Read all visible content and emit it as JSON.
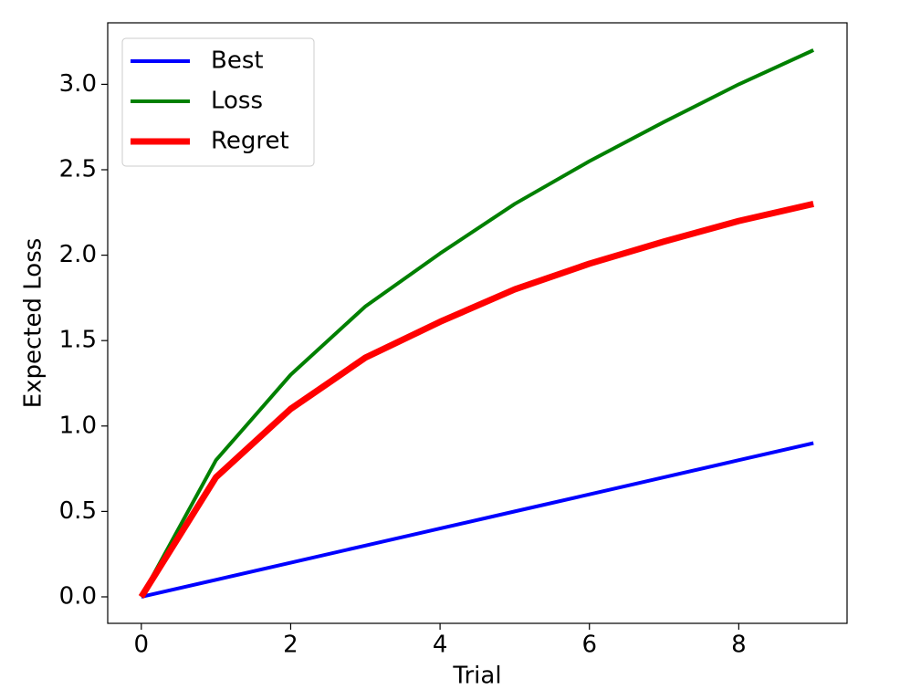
{
  "chart_data": {
    "type": "line",
    "xlabel": "Trial",
    "ylabel": "Expected Loss",
    "x": [
      0,
      1,
      2,
      3,
      4,
      5,
      6,
      7,
      8,
      9
    ],
    "series": [
      {
        "name": "Best",
        "color": "#0000ff",
        "linewidth": 4,
        "values": [
          0,
          0.1,
          0.2,
          0.3,
          0.4,
          0.5,
          0.6,
          0.7,
          0.8,
          0.9
        ]
      },
      {
        "name": "Loss",
        "color": "#008000",
        "linewidth": 4,
        "values": [
          0,
          0.8,
          1.3,
          1.7,
          2.01,
          2.3,
          2.55,
          2.78,
          3.0,
          3.2
        ]
      },
      {
        "name": "Regret",
        "color": "#ff0000",
        "linewidth": 7,
        "values": [
          0,
          0.7,
          1.1,
          1.4,
          1.61,
          1.8,
          1.95,
          2.08,
          2.2,
          2.3
        ]
      }
    ],
    "xlim": [
      -0.45,
      9.45
    ],
    "xticks": [
      0,
      2,
      4,
      6,
      8
    ],
    "ylim": [
      -0.155,
      3.36
    ],
    "yticks": [
      {
        "value": 0,
        "label": "0.0"
      },
      0.5,
      {
        "value": 1,
        "label": "1.0"
      },
      1.5,
      {
        "value": 2,
        "label": "2.0"
      },
      2.5,
      {
        "value": 3,
        "label": "3.0"
      }
    ],
    "grid": false,
    "legend": "upper left"
  }
}
